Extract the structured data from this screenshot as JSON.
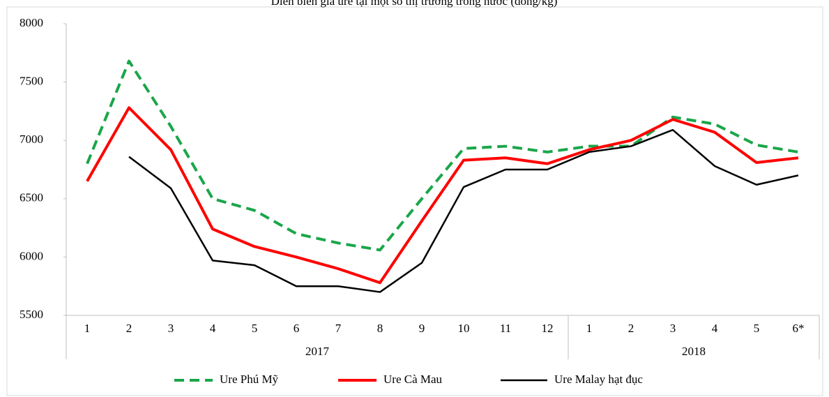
{
  "chart_data": {
    "type": "line",
    "title": "Diễn biến giá ure tại một số thị trường trong nước (đồng/kg)",
    "categories": [
      "1",
      "2",
      "3",
      "4",
      "5",
      "6",
      "7",
      "8",
      "9",
      "10",
      "11",
      "12",
      "1",
      "2",
      "3",
      "4",
      "5",
      "6*"
    ],
    "x_groups": [
      {
        "label": "2017",
        "span": 12
      },
      {
        "label": "2018",
        "span": 6
      }
    ],
    "series": [
      {
        "name": "Ure Phú Mỹ",
        "color": "#1aa64a",
        "dashed": true,
        "values": [
          6800,
          7680,
          7120,
          6500,
          6400,
          6200,
          6120,
          6060,
          6500,
          6930,
          6950,
          6900,
          6950,
          6950,
          7200,
          7140,
          6960,
          6900
        ]
      },
      {
        "name": "Ure Cà Mau",
        "color": "#ff0000",
        "dashed": false,
        "values": [
          6650,
          7280,
          6920,
          6240,
          6090,
          6000,
          5900,
          5780,
          6310,
          6830,
          6850,
          6800,
          6920,
          7000,
          7180,
          7070,
          6810,
          6850
        ]
      },
      {
        "name": "Ure Malay hạt đục",
        "color": "#000000",
        "dashed": false,
        "values": [
          null,
          6860,
          6590,
          5970,
          5930,
          5750,
          5750,
          5700,
          5950,
          6600,
          6750,
          6750,
          6900,
          6950,
          7090,
          6780,
          6620,
          6700
        ]
      }
    ],
    "ylim": [
      5500,
      8000
    ],
    "yticks": [
      5500,
      6000,
      6500,
      7000,
      7500,
      8000
    ],
    "grid": false,
    "legend": "bottom"
  }
}
